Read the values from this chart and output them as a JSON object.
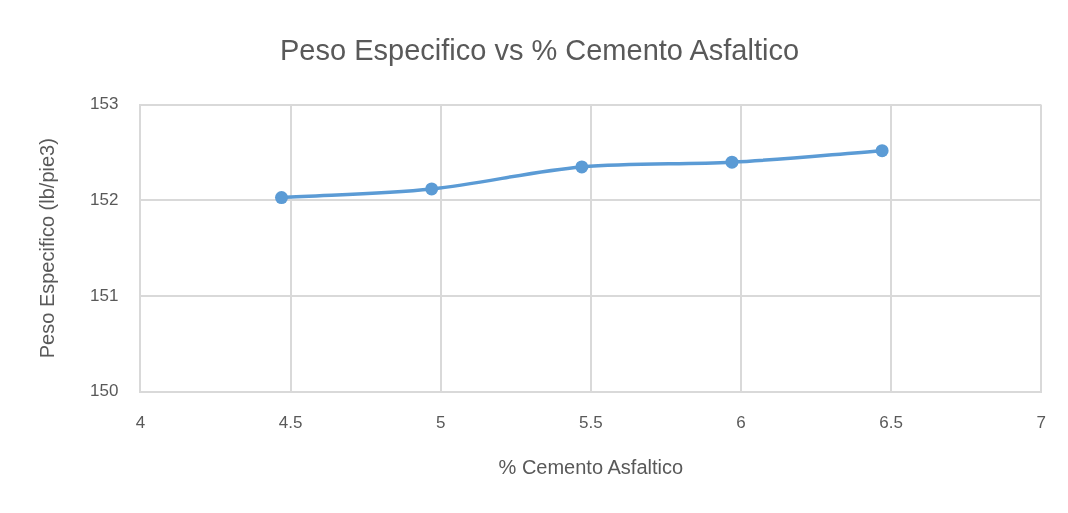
{
  "chart_data": {
    "type": "line",
    "title": "Peso Especifico vs % Cemento Asfaltico",
    "xlabel": "% Cemento Asfaltico",
    "ylabel": "Peso Especifico (lb/pie3)",
    "x": [
      4.47,
      4.97,
      5.47,
      5.97,
      6.47
    ],
    "series": [
      {
        "color": "#5b9bd5",
        "values": [
          152.03,
          152.12,
          152.35,
          152.4,
          152.52
        ]
      }
    ],
    "xlim": [
      4,
      7
    ],
    "xticks": [
      4,
      4.5,
      5,
      5.5,
      6,
      6.5,
      7
    ],
    "ylim": [
      150,
      153
    ],
    "yticks": [
      150,
      151,
      152,
      153
    ],
    "grid": true,
    "marker": "circle",
    "line_style": "solid"
  }
}
